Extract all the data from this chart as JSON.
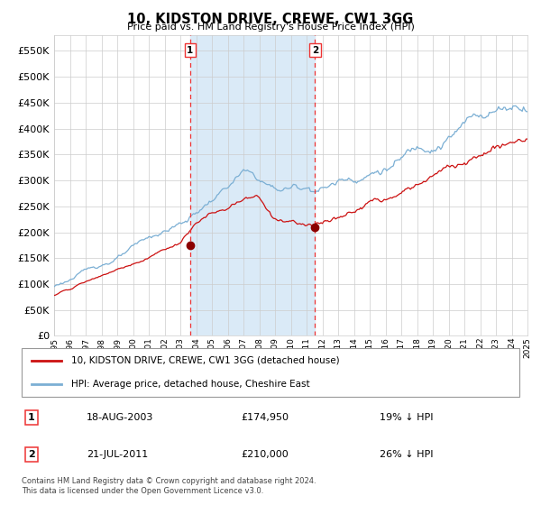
{
  "title": "10, KIDSTON DRIVE, CREWE, CW1 3GG",
  "subtitle": "Price paid vs. HM Land Registry's House Price Index (HPI)",
  "legend_line1": "10, KIDSTON DRIVE, CREWE, CW1 3GG (detached house)",
  "legend_line2": "HPI: Average price, detached house, Cheshire East",
  "annotation1_date": "18-AUG-2003",
  "annotation1_price": "£174,950",
  "annotation1_hpi": "19% ↓ HPI",
  "annotation2_date": "21-JUL-2011",
  "annotation2_price": "£210,000",
  "annotation2_hpi": "26% ↓ HPI",
  "footer": "Contains HM Land Registry data © Crown copyright and database right 2024.\nThis data is licensed under the Open Government Licence v3.0.",
  "hpi_color": "#7bafd4",
  "price_color": "#cc1111",
  "marker_color": "#8b0000",
  "vline_color": "#ee3333",
  "shade_color": "#daeaf7",
  "grid_color": "#cccccc",
  "background_color": "#ffffff",
  "ylim": [
    0,
    580000
  ],
  "yticks": [
    0,
    50000,
    100000,
    150000,
    200000,
    250000,
    300000,
    350000,
    400000,
    450000,
    500000,
    550000
  ],
  "year_start": 1995,
  "year_end": 2025,
  "sale1_year": 2003.625,
  "sale2_year": 2011.542,
  "sale1_price": 174950,
  "sale2_price": 210000
}
